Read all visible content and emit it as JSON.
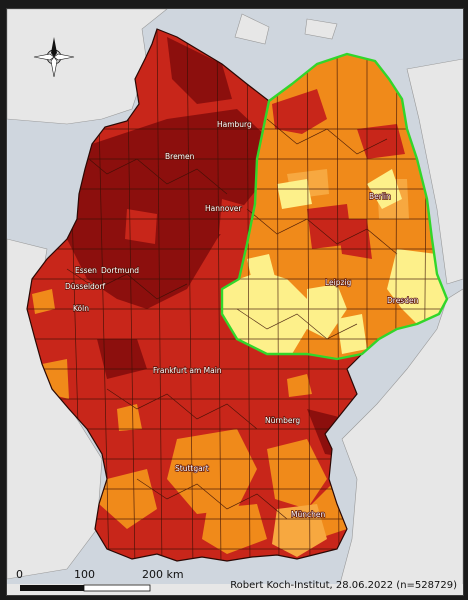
{
  "cities": [
    {
      "key": "hamburg",
      "name": "Hamburg"
    },
    {
      "key": "bremen",
      "name": "Bremen"
    },
    {
      "key": "hannover",
      "name": "Hannover"
    },
    {
      "key": "berlin",
      "name": "Berlin"
    },
    {
      "key": "essen",
      "name": "Essen"
    },
    {
      "key": "dortmund",
      "name": "Dortmund"
    },
    {
      "key": "duesseldorf",
      "name": "Düsseldorf"
    },
    {
      "key": "koeln",
      "name": "Köln"
    },
    {
      "key": "leipzig",
      "name": "Leipzig"
    },
    {
      "key": "dresden",
      "name": "Dresden"
    },
    {
      "key": "frankfurt",
      "name": "Frankfurt am Main"
    },
    {
      "key": "nuernberg",
      "name": "Nürnberg"
    },
    {
      "key": "stuttgart",
      "name": "Stuttgart"
    },
    {
      "key": "muenchen",
      "name": "München"
    }
  ],
  "scale_bar": {
    "ticks": [
      "0",
      "100",
      "200 km"
    ]
  },
  "credit": "Robert Koch-Institut, 28.06.2022 (n=528729)",
  "colors": {
    "background": "#cfd6de",
    "neighbors": "#e7e7e7",
    "very_high": "#8c0f0d",
    "high": "#c8261a",
    "medium": "#f08a1a",
    "low": "#f7a840",
    "very_low": "#fdf08a",
    "east_outline": "#32d62a",
    "district_border": "#3a1006"
  },
  "icons": {
    "compass": "compass-rose-icon"
  }
}
